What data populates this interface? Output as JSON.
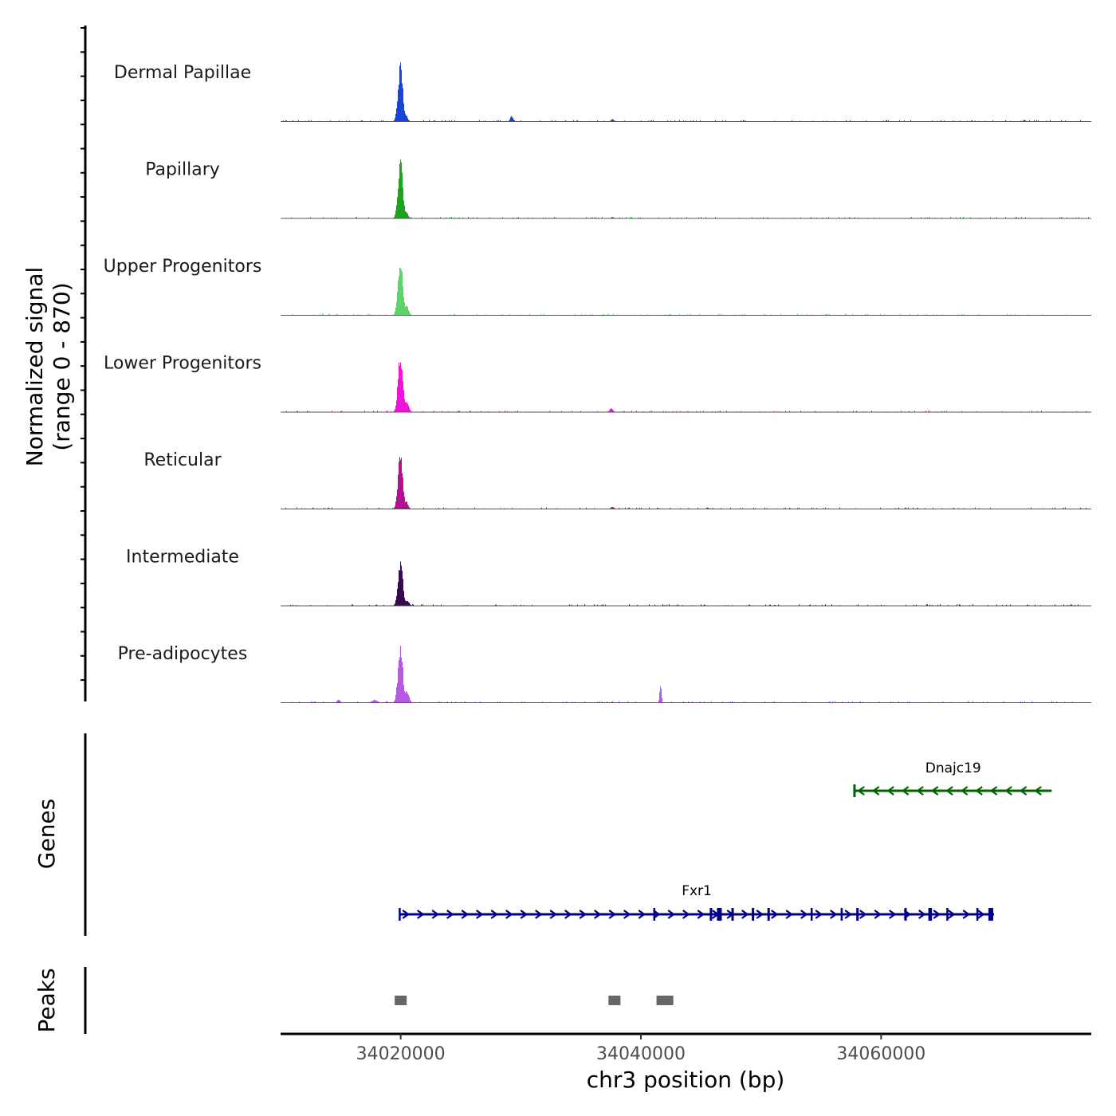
{
  "chart_data": {
    "type": "coverage-track",
    "chromosome": "chr3",
    "xlabel": "chr3 position (bp)",
    "x_range": [
      34010000,
      34077500
    ],
    "x_ticks": [
      {
        "value": 34020000,
        "label": "34020000"
      },
      {
        "value": 34040000,
        "label": "34040000"
      },
      {
        "value": 34060000,
        "label": "34060000"
      }
    ],
    "coverage": {
      "ylabel_line1": "Normalized signal",
      "ylabel_line2": "(range 0 - 870)",
      "y_range": [
        0,
        870
      ],
      "tracks": [
        {
          "name": "Dermal Papillae",
          "color": "#1944d8",
          "peaks": [
            {
              "pos": 34019950,
              "height": 0.97,
              "width": 350
            },
            {
              "pos": 34020350,
              "height": 0.14,
              "width": 300
            },
            {
              "pos": 34029200,
              "height": 0.1,
              "width": 220
            },
            {
              "pos": 34037600,
              "height": 0.04,
              "width": 250
            },
            {
              "pos": 34071900,
              "height": 0.03,
              "width": 200
            }
          ]
        },
        {
          "name": "Papillary",
          "color": "#1ea31e",
          "peaks": [
            {
              "pos": 34019950,
              "height": 0.98,
              "width": 350
            },
            {
              "pos": 34020400,
              "height": 0.12,
              "width": 300
            },
            {
              "pos": 34037600,
              "height": 0.03,
              "width": 200
            }
          ]
        },
        {
          "name": "Upper Progenitors",
          "color": "#5ed36a",
          "peaks": [
            {
              "pos": 34019950,
              "height": 1.0,
              "width": 350
            },
            {
              "pos": 34020450,
              "height": 0.16,
              "width": 320
            }
          ]
        },
        {
          "name": "Lower Progenitors",
          "color": "#ef14d8",
          "peaks": [
            {
              "pos": 34019950,
              "height": 0.99,
              "width": 350
            },
            {
              "pos": 34020450,
              "height": 0.2,
              "width": 320
            },
            {
              "pos": 34037500,
              "height": 0.07,
              "width": 250
            }
          ]
        },
        {
          "name": "Reticular",
          "color": "#b0138f",
          "peaks": [
            {
              "pos": 34019950,
              "height": 0.94,
              "width": 350
            },
            {
              "pos": 34020400,
              "height": 0.14,
              "width": 300
            },
            {
              "pos": 34037600,
              "height": 0.04,
              "width": 250
            }
          ]
        },
        {
          "name": "Intermediate",
          "color": "#3a0a50",
          "peaks": [
            {
              "pos": 34019950,
              "height": 0.76,
              "width": 350
            },
            {
              "pos": 34020500,
              "height": 0.1,
              "width": 300
            }
          ]
        },
        {
          "name": "Pre-adipocytes",
          "color": "#b65ae6",
          "peaks": [
            {
              "pos": 34019950,
              "height": 1.0,
              "width": 350
            },
            {
              "pos": 34020450,
              "height": 0.22,
              "width": 330
            },
            {
              "pos": 34041600,
              "height": 0.33,
              "width": 120
            },
            {
              "pos": 34014800,
              "height": 0.05,
              "width": 250
            },
            {
              "pos": 34017800,
              "height": 0.05,
              "width": 400
            }
          ]
        }
      ]
    },
    "genes": {
      "ylabel": "Genes",
      "items": [
        {
          "name": "Dnajc19",
          "start": 34057800,
          "end": 34074200,
          "strand": "-",
          "color": "#006400",
          "exons": [
            [
              34057750,
              34057950
            ]
          ]
        },
        {
          "name": "Fxr1",
          "start": 34019900,
          "end": 34069400,
          "strand": "+",
          "color": "#00008b",
          "exons": [
            [
              34019900,
              34020050
            ],
            [
              34041100,
              34041200
            ],
            [
              34045800,
              34046000
            ],
            [
              34046400,
              34046800
            ],
            [
              34047600,
              34047800
            ],
            [
              34049300,
              34049500
            ],
            [
              34050600,
              34050800
            ],
            [
              34054200,
              34054300
            ],
            [
              34056700,
              34056800
            ],
            [
              34058000,
              34058200
            ],
            [
              34062000,
              34062200
            ],
            [
              34064000,
              34064300
            ],
            [
              34065500,
              34065600
            ],
            [
              34068000,
              34068100
            ],
            [
              34069000,
              34069400
            ]
          ]
        }
      ]
    },
    "peaks_track": {
      "ylabel": "Peaks",
      "color": "#666666",
      "regions": [
        [
          34019500,
          34020500
        ],
        [
          34037300,
          34038300
        ],
        [
          34041300,
          34042700
        ]
      ]
    }
  }
}
